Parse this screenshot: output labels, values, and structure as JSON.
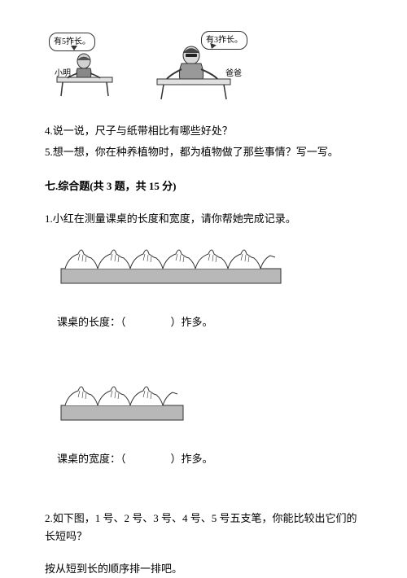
{
  "illustration": {
    "bubble1": "有5拃长。",
    "bubble2": "有3拃长。",
    "label1": "小明",
    "label2": "爸爸"
  },
  "questions": {
    "q4": "4.说一说，尺子与纸带相比有哪些好处？",
    "q5": "5.想一想，你在种养植物时，都为植物做了那些事情？写一写。"
  },
  "section": {
    "title": "七.综合题(共 3 题，共 15 分)"
  },
  "sub1": {
    "text": "1.小红在测量课桌的长度和宽度，请你帮她完成记录。",
    "length_label": "课桌的长度：（",
    "length_suffix": "）拃多。",
    "width_label": "课桌的宽度：（",
    "width_suffix": "）拃多。",
    "handspan_long_count": 6,
    "handspan_short_count": 3,
    "diagram": {
      "bar_fill": "#b8b8b8",
      "bar_stroke": "#333333",
      "hand_stroke": "#333333",
      "hand_fill": "#ffffff"
    }
  },
  "sub2": {
    "line1": "2.如下图，1 号、2 号、3 号、4 号、5 号五支笔，你能比较出它们的长短吗？",
    "line2": "按从短到长的顺序排一排吧。"
  }
}
